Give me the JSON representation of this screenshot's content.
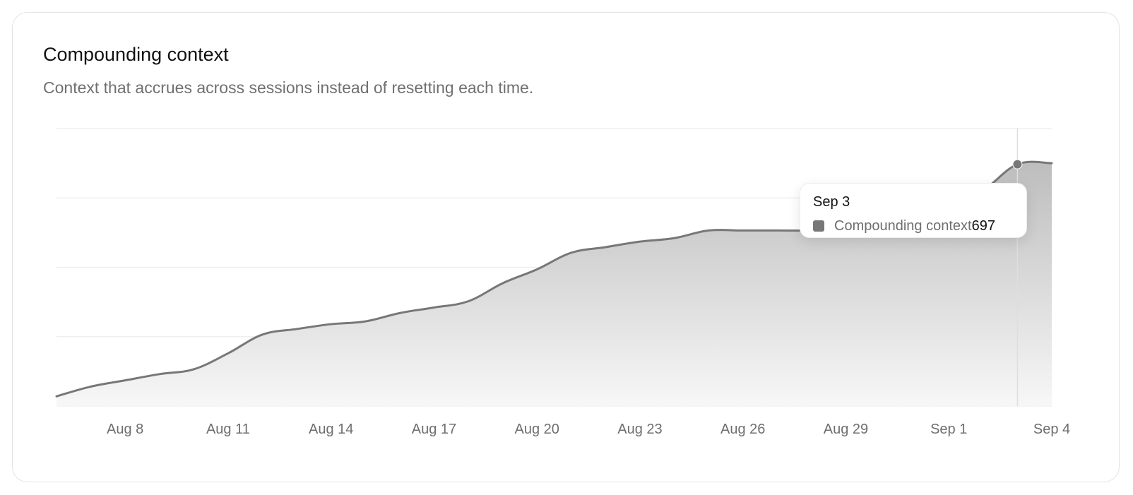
{
  "card": {
    "title": "Compounding context",
    "subtitle": "Context that accrues across sessions instead of resetting each time."
  },
  "tooltip": {
    "date": "Sep 3",
    "series_label": "Compounding context",
    "value": "697"
  },
  "colors": {
    "line": "#777777",
    "fill_top": "#bdbdbd",
    "fill_bottom": "#f7f7f7",
    "grid": "#ececec",
    "axis_text": "#6e6e6e"
  },
  "chart_data": {
    "type": "area",
    "title": "Compounding context",
    "subtitle": "Context that accrues across sessions instead of resetting each time.",
    "xlabel": "",
    "ylabel": "",
    "ylim": [
      0,
      800
    ],
    "grid": true,
    "x_range": [
      "Aug 6",
      "Sep 4"
    ],
    "tick_labels": [
      "Aug 8",
      "Aug 11",
      "Aug 14",
      "Aug 17",
      "Aug 20",
      "Aug 23",
      "Aug 26",
      "Aug 29",
      "Sep 1",
      "Sep 4"
    ],
    "tick_dates": [
      "Aug 8",
      "Aug 11",
      "Aug 14",
      "Aug 17",
      "Aug 20",
      "Aug 23",
      "Aug 26",
      "Aug 29",
      "Sep 1",
      "Sep 4"
    ],
    "highlighted_point": {
      "x": "Sep 3",
      "y": 697
    },
    "series": [
      {
        "name": "Compounding context",
        "x": [
          "Aug 6",
          "Aug 7",
          "Aug 8",
          "Aug 9",
          "Aug 10",
          "Aug 11",
          "Aug 12",
          "Aug 13",
          "Aug 14",
          "Aug 15",
          "Aug 16",
          "Aug 17",
          "Aug 18",
          "Aug 19",
          "Aug 20",
          "Aug 21",
          "Aug 22",
          "Aug 23",
          "Aug 24",
          "Aug 25",
          "Aug 26",
          "Aug 27",
          "Aug 28",
          "Aug 29",
          "Aug 30",
          "Aug 31",
          "Sep 1",
          "Sep 2",
          "Sep 3",
          "Sep 4"
        ],
        "values": [
          28,
          56,
          74,
          92,
          106,
          152,
          206,
          222,
          236,
          244,
          268,
          284,
          302,
          354,
          394,
          442,
          458,
          474,
          484,
          506,
          506,
          506,
          506,
          508,
          518,
          548,
          578,
          622,
          697,
          700
        ]
      }
    ]
  }
}
